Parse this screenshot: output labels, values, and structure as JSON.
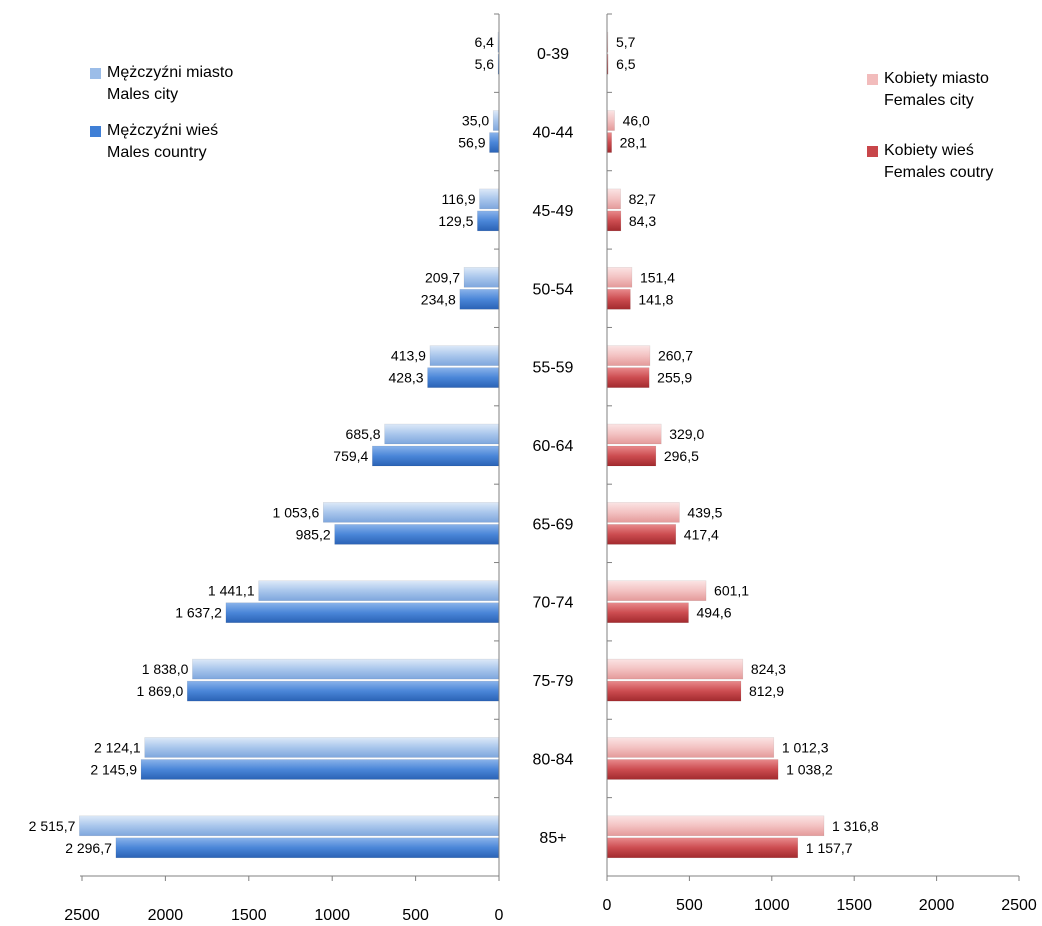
{
  "chart_data": {
    "type": "bar",
    "orientation": "horizontal-population-pyramid",
    "categories": [
      "0-39",
      "40-44",
      "45-49",
      "50-54",
      "55-59",
      "60-64",
      "65-69",
      "70-74",
      "75-79",
      "80-84",
      "85+"
    ],
    "left": {
      "axis_ticks": [
        "2500",
        "2000",
        "1500",
        "1000",
        "500",
        "0"
      ],
      "xlim": [
        0,
        2500
      ],
      "series": [
        {
          "name_line1": "Mężczyźni miasto",
          "name_line2": "Males city",
          "color": "#9cbde8",
          "values": [
            6.4,
            35.0,
            116.9,
            209.7,
            413.9,
            685.8,
            1053.6,
            1441.1,
            1838.0,
            2124.1,
            2515.7
          ],
          "labels": [
            "6,4",
            "35,0",
            "116,9",
            "209,7",
            "413,9",
            "685,8",
            "1 053,6",
            "1 441,1",
            "1 838,0",
            "2 124,1",
            "2 515,7"
          ]
        },
        {
          "name_line1": "Mężczyźni wieś",
          "name_line2": "Males country",
          "color": "#3f7fd6",
          "values": [
            5.6,
            56.9,
            129.5,
            234.8,
            428.3,
            759.4,
            985.2,
            1637.2,
            1869.0,
            2145.9,
            2296.7
          ],
          "labels": [
            "5,6",
            "56,9",
            "129,5",
            "234,8",
            "428,3",
            "759,4",
            "985,2",
            "1 637,2",
            "1 869,0",
            "2 145,9",
            "2 296,7"
          ]
        }
      ]
    },
    "right": {
      "axis_ticks": [
        "0",
        "500",
        "1000",
        "1500",
        "2000",
        "2500"
      ],
      "xlim": [
        0,
        2500
      ],
      "series": [
        {
          "name_line1": "Kobiety miasto",
          "name_line2": "Females city",
          "color": "#f2bcbc",
          "values": [
            5.7,
            46.0,
            82.7,
            151.4,
            260.7,
            329.0,
            439.5,
            601.1,
            824.3,
            1012.3,
            1316.8
          ],
          "labels": [
            "5,7",
            "46,0",
            "82,7",
            "151,4",
            "260,7",
            "329,0",
            "439,5",
            "601,1",
            "824,3",
            "1 012,3",
            "1 316,8"
          ]
        },
        {
          "name_line1": "Kobiety wieś",
          "name_line2": "Females coutry",
          "color": "#c8464a",
          "values": [
            6.5,
            28.1,
            84.3,
            141.8,
            255.9,
            296.5,
            417.4,
            494.6,
            812.9,
            1038.2,
            1157.7
          ],
          "labels": [
            "6,5",
            "28,1",
            "84,3",
            "141,8",
            "255,9",
            "296,5",
            "417,4",
            "494,6",
            "812,9",
            "1 038,2",
            "1 157,7"
          ]
        }
      ]
    }
  }
}
